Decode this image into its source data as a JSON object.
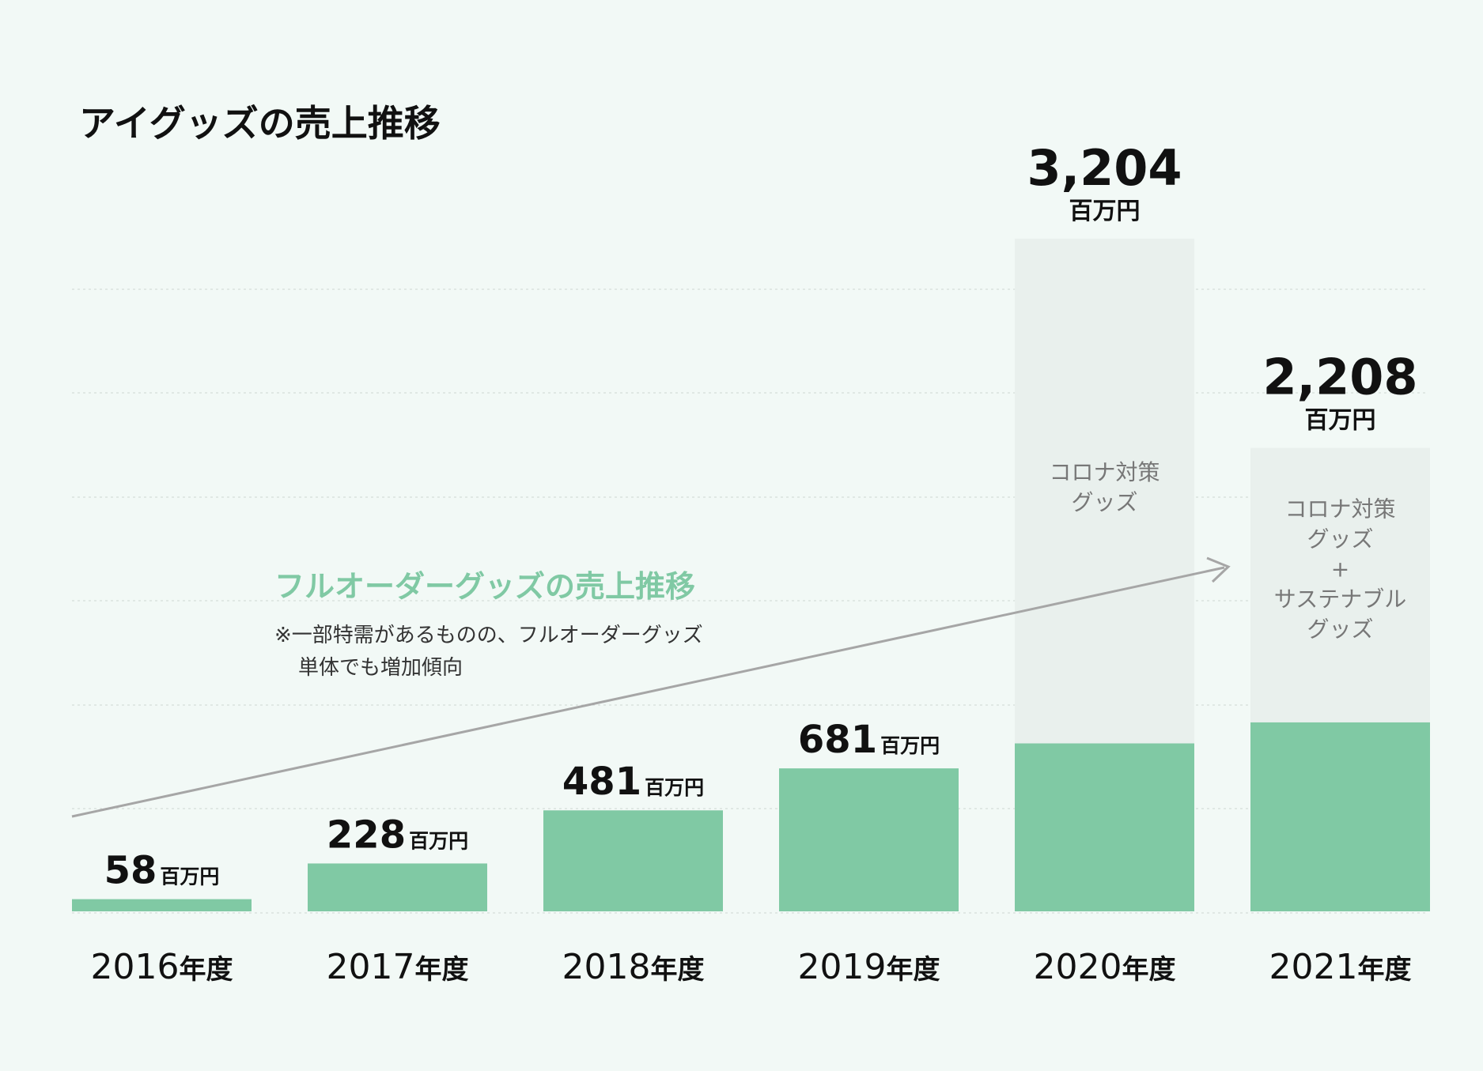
{
  "chart_data": {
    "type": "bar",
    "title": "アイグッズの売上推移",
    "unit": "百万円",
    "category_suffix": "年度",
    "categories": [
      "2016",
      "2017",
      "2018",
      "2019",
      "2020",
      "2021"
    ],
    "totals": [
      58,
      228,
      481,
      681,
      3204,
      2208
    ],
    "total_labels": [
      "58",
      "228",
      "481",
      "681",
      "3,204",
      "2,208"
    ],
    "series": [
      {
        "name": "フルオーダーグッズ",
        "values": [
          58,
          228,
          481,
          681,
          800,
          900
        ]
      },
      {
        "name": "コロナ対策グッズ / サステナブルグッズ",
        "values": [
          0,
          0,
          0,
          0,
          2404,
          1308
        ]
      }
    ],
    "segment_labels": [
      {
        "category": "2020",
        "lines": [
          "コロナ対策",
          "グッズ"
        ]
      },
      {
        "category": "2021",
        "lines": [
          "コロナ対策",
          "グッズ",
          "+",
          "サステナブル",
          "グッズ"
        ]
      }
    ],
    "ylim": [
      0,
      3204
    ],
    "grid": true,
    "annotation": {
      "title": "フルオーダーグッズの売上推移",
      "note_lines": [
        "※一部特需があるものの、フルオーダーグッズ",
        "単体でも増加傾向"
      ]
    },
    "colors": {
      "primary": "#80c9a4",
      "secondary": "#e9f0ed",
      "accent_text": "#80c9a4",
      "arrow": "#a6a6a6",
      "grid": "#d9e2de"
    }
  }
}
